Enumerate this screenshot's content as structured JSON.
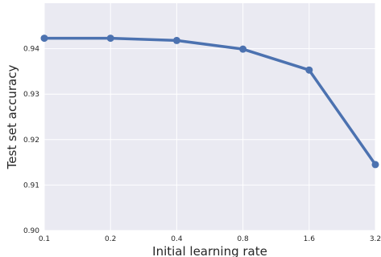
{
  "chart_data": {
    "type": "line",
    "title": "",
    "xlabel": "Initial learning rate",
    "ylabel": "Test set accuracy",
    "x_scale": "log2",
    "x": [
      0.1,
      0.2,
      0.4,
      0.8,
      1.6,
      3.2
    ],
    "x_tick_labels": [
      "0.1",
      "0.2",
      "0.4",
      "0.8",
      "1.6",
      "3.2"
    ],
    "y_ticks": [
      0.9,
      0.91,
      0.92,
      0.93,
      0.94
    ],
    "y_tick_labels": [
      "0.90",
      "0.91",
      "0.92",
      "0.93",
      "0.94"
    ],
    "ylim": [
      0.9,
      0.95
    ],
    "grid": true,
    "series": [
      {
        "values": [
          0.9423,
          0.9423,
          0.9418,
          0.9399,
          0.9353,
          0.9145
        ],
        "color": "#4c72b0"
      }
    ],
    "background_color": "#eaeaf2",
    "grid_color": "#ffffff"
  }
}
